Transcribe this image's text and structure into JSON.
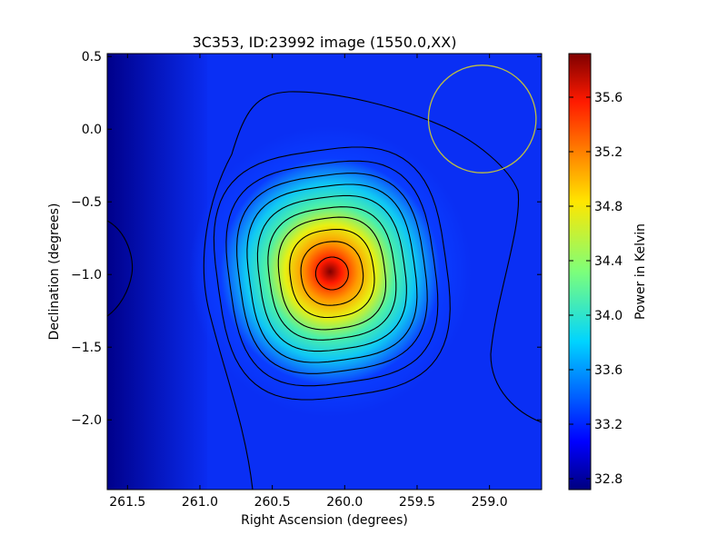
{
  "chart_data": {
    "type": "heatmap",
    "title": "3C353, ID:23992 image (1550.0,XX)",
    "xlabel": "Right Ascension (degrees)",
    "ylabel": "Declination (degrees)",
    "xlim": [
      261.64,
      258.64
    ],
    "ylim": [
      -2.48,
      0.52
    ],
    "x_ticks": [
      261.5,
      261.0,
      260.5,
      260.0,
      259.5,
      259.0
    ],
    "x_tick_labels": [
      "261.5",
      "261.0",
      "260.5",
      "260.0",
      "259.5",
      "259.0"
    ],
    "y_ticks": [
      0.5,
      0.0,
      -0.5,
      -1.0,
      -1.5,
      -2.0
    ],
    "y_tick_labels": [
      "0.5",
      "0.0",
      "−0.5",
      "−1.0",
      "−1.5",
      "−2.0"
    ],
    "colorbar": {
      "label": "Power in Kelvin",
      "range": [
        32.72,
        35.92
      ],
      "ticks": [
        32.8,
        33.2,
        33.6,
        34.0,
        34.4,
        34.8,
        35.2,
        35.6
      ],
      "tick_labels": [
        "32.8",
        "33.2",
        "33.6",
        "34.0",
        "34.4",
        "34.8",
        "35.2",
        "35.6"
      ],
      "colormap": "jet"
    },
    "source": {
      "ra": 260.1,
      "dec": -0.98,
      "peak_kelvin": 35.9,
      "background_kelvin": 33.0
    },
    "beam_circle": {
      "ra": 259.05,
      "dec": 0.07,
      "radius_deg": 0.37,
      "color": "#bfbf40"
    },
    "contour_color": "#000000"
  }
}
